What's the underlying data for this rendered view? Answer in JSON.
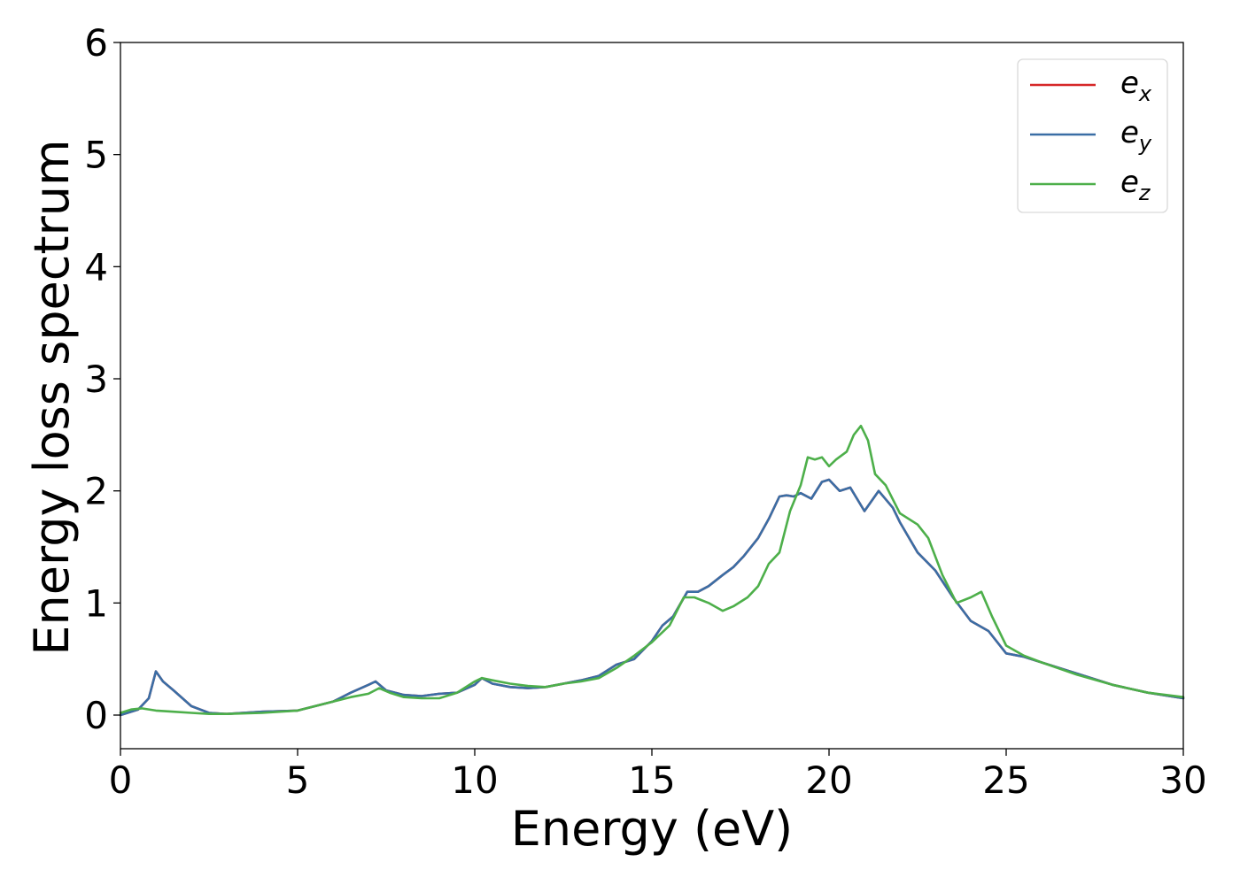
{
  "chart_data": {
    "type": "line",
    "title": "",
    "xlabel": "Energy (eV)",
    "ylabel": "Energy loss spectrum",
    "xlim": [
      0,
      30
    ],
    "ylim": [
      -0.3,
      6
    ],
    "xticks": [
      0,
      5,
      10,
      15,
      20,
      25,
      30
    ],
    "yticks": [
      0,
      1,
      2,
      3,
      4,
      5,
      6
    ],
    "grid": false,
    "legend_position": "top-right",
    "series": [
      {
        "name": "e",
        "subscript": "x",
        "color": "#d62728",
        "x": [
          0,
          0.5,
          0.8,
          1.0,
          1.2,
          1.5,
          2.0,
          2.5,
          3.0,
          4.0,
          5.0,
          6.0,
          6.5,
          7.0,
          7.2,
          7.5,
          8.0,
          8.5,
          9.0,
          9.5,
          10.0,
          10.2,
          10.5,
          11.0,
          11.5,
          12.0,
          12.5,
          13.0,
          13.5,
          14.0,
          14.5,
          15.0,
          15.3,
          15.6,
          16.0,
          16.3,
          16.6,
          17.0,
          17.3,
          17.6,
          18.0,
          18.3,
          18.6,
          18.8,
          19.0,
          19.2,
          19.5,
          19.8,
          20.0,
          20.3,
          20.6,
          21.0,
          21.4,
          21.8,
          22.0,
          22.5,
          23.0,
          23.5,
          24.0,
          24.5,
          25.0,
          25.5,
          26.0,
          27.0,
          28.0,
          29.0,
          30.0
        ],
        "values": [
          0.0,
          0.05,
          0.15,
          0.39,
          0.3,
          0.22,
          0.08,
          0.02,
          0.01,
          0.03,
          0.04,
          0.12,
          0.2,
          0.27,
          0.3,
          0.22,
          0.18,
          0.17,
          0.19,
          0.2,
          0.27,
          0.33,
          0.28,
          0.25,
          0.24,
          0.25,
          0.28,
          0.31,
          0.35,
          0.45,
          0.5,
          0.66,
          0.8,
          0.88,
          1.1,
          1.1,
          1.15,
          1.25,
          1.32,
          1.42,
          1.58,
          1.75,
          1.95,
          1.96,
          1.95,
          1.98,
          1.93,
          2.08,
          2.1,
          2.0,
          2.03,
          1.82,
          2.0,
          1.85,
          1.72,
          1.45,
          1.29,
          1.05,
          0.84,
          0.75,
          0.55,
          0.52,
          0.47,
          0.37,
          0.27,
          0.2,
          0.15
        ]
      },
      {
        "name": "e",
        "subscript": "y",
        "color": "#3a6ea5",
        "x": [
          0,
          0.5,
          0.8,
          1.0,
          1.2,
          1.5,
          2.0,
          2.5,
          3.0,
          4.0,
          5.0,
          6.0,
          6.5,
          7.0,
          7.2,
          7.5,
          8.0,
          8.5,
          9.0,
          9.5,
          10.0,
          10.2,
          10.5,
          11.0,
          11.5,
          12.0,
          12.5,
          13.0,
          13.5,
          14.0,
          14.5,
          15.0,
          15.3,
          15.6,
          16.0,
          16.3,
          16.6,
          17.0,
          17.3,
          17.6,
          18.0,
          18.3,
          18.6,
          18.8,
          19.0,
          19.2,
          19.5,
          19.8,
          20.0,
          20.3,
          20.6,
          21.0,
          21.4,
          21.8,
          22.0,
          22.5,
          23.0,
          23.5,
          24.0,
          24.5,
          25.0,
          25.5,
          26.0,
          27.0,
          28.0,
          29.0,
          30.0
        ],
        "values": [
          0.0,
          0.05,
          0.15,
          0.39,
          0.3,
          0.22,
          0.08,
          0.02,
          0.01,
          0.03,
          0.04,
          0.12,
          0.2,
          0.27,
          0.3,
          0.22,
          0.18,
          0.17,
          0.19,
          0.2,
          0.27,
          0.33,
          0.28,
          0.25,
          0.24,
          0.25,
          0.28,
          0.31,
          0.35,
          0.45,
          0.5,
          0.66,
          0.8,
          0.88,
          1.1,
          1.1,
          1.15,
          1.25,
          1.32,
          1.42,
          1.58,
          1.75,
          1.95,
          1.96,
          1.95,
          1.98,
          1.93,
          2.08,
          2.1,
          2.0,
          2.03,
          1.82,
          2.0,
          1.85,
          1.72,
          1.45,
          1.29,
          1.05,
          0.84,
          0.75,
          0.55,
          0.52,
          0.47,
          0.37,
          0.27,
          0.2,
          0.15
        ]
      },
      {
        "name": "e",
        "subscript": "z",
        "color": "#4daf4a",
        "x": [
          0,
          0.3,
          0.6,
          1.0,
          1.5,
          2.0,
          2.5,
          3.0,
          4.0,
          5.0,
          6.0,
          6.5,
          7.0,
          7.3,
          7.6,
          8.0,
          8.5,
          9.0,
          9.5,
          10.0,
          10.2,
          10.5,
          11.0,
          11.5,
          12.0,
          12.5,
          13.0,
          13.5,
          14.0,
          14.5,
          15.0,
          15.5,
          15.9,
          16.2,
          16.6,
          17.0,
          17.3,
          17.7,
          18.0,
          18.3,
          18.6,
          18.9,
          19.2,
          19.4,
          19.6,
          19.8,
          20.0,
          20.2,
          20.5,
          20.7,
          20.9,
          21.1,
          21.3,
          21.6,
          22.0,
          22.5,
          22.8,
          23.2,
          23.6,
          24.0,
          24.3,
          24.6,
          25.0,
          25.5,
          26.0,
          27.0,
          28.0,
          29.0,
          30.0
        ],
        "values": [
          0.02,
          0.05,
          0.06,
          0.04,
          0.03,
          0.02,
          0.01,
          0.01,
          0.02,
          0.04,
          0.12,
          0.16,
          0.19,
          0.24,
          0.2,
          0.16,
          0.15,
          0.15,
          0.2,
          0.3,
          0.33,
          0.31,
          0.28,
          0.26,
          0.25,
          0.28,
          0.3,
          0.33,
          0.42,
          0.53,
          0.65,
          0.8,
          1.05,
          1.05,
          1.0,
          0.93,
          0.97,
          1.05,
          1.15,
          1.35,
          1.45,
          1.82,
          2.05,
          2.3,
          2.28,
          2.3,
          2.22,
          2.28,
          2.35,
          2.5,
          2.58,
          2.45,
          2.15,
          2.05,
          1.8,
          1.7,
          1.58,
          1.25,
          1.0,
          1.05,
          1.1,
          0.88,
          0.62,
          0.53,
          0.47,
          0.36,
          0.27,
          0.2,
          0.16
        ]
      }
    ]
  }
}
